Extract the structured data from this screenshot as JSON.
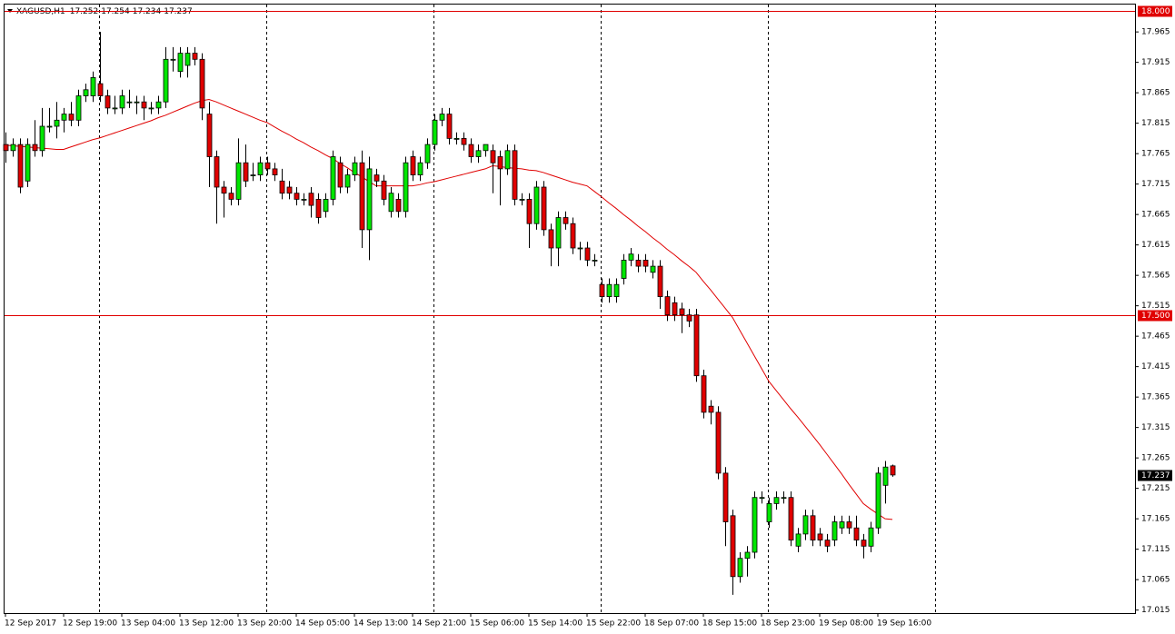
{
  "chart_data": {
    "type": "candlestick",
    "title": "XAGUSD,H1",
    "header_values": [
      17.252,
      17.254,
      17.234,
      17.237
    ],
    "categories": [
      "12 Sep 2017",
      null,
      null,
      null,
      null,
      null,
      null,
      null,
      "12 Sep 19:00",
      null,
      null,
      null,
      null,
      null,
      null,
      null,
      "13 Sep 04:00",
      null,
      null,
      null,
      null,
      null,
      null,
      null,
      "13 Sep 12:00",
      null,
      null,
      null,
      null,
      null,
      null,
      null,
      "13 Sep 20:00",
      null,
      null,
      null,
      null,
      null,
      null,
      null,
      "14 Sep 05:00",
      null,
      null,
      null,
      null,
      null,
      null,
      null,
      "14 Sep 13:00",
      null,
      null,
      null,
      null,
      null,
      null,
      null,
      "14 Sep 21:00",
      null,
      null,
      null,
      null,
      null,
      null,
      null,
      "15 Sep 06:00",
      null,
      null,
      null,
      null,
      null,
      null,
      null,
      "15 Sep 14:00",
      null,
      null,
      null,
      null,
      null,
      null,
      null,
      "15 Sep 22:00",
      null,
      null,
      null,
      null,
      null,
      null,
      null,
      "18 Sep 07:00",
      null,
      null,
      null,
      null,
      null,
      null,
      null,
      "18 Sep 15:00",
      null,
      null,
      null,
      null,
      null,
      null,
      null,
      "18 Sep 23:00",
      null,
      null,
      null,
      null,
      null,
      null,
      null,
      "19 Sep 08:00",
      null,
      null,
      null,
      null,
      null,
      null,
      null,
      "19 Sep 16:00",
      null,
      null
    ],
    "open": [
      17.78,
      17.77,
      17.78,
      17.72,
      17.78,
      17.77,
      17.81,
      17.81,
      17.82,
      17.83,
      17.82,
      17.86,
      17.86,
      17.88,
      17.86,
      17.84,
      17.84,
      17.85,
      17.85,
      17.85,
      17.84,
      17.84,
      17.85,
      17.92,
      17.9,
      17.91,
      17.93,
      17.92,
      17.83,
      17.76,
      17.71,
      17.7,
      17.69,
      17.75,
      17.73,
      17.73,
      17.75,
      17.74,
      17.72,
      17.71,
      17.7,
      17.69,
      17.7,
      17.69,
      17.67,
      17.69,
      17.75,
      17.71,
      17.73,
      17.75,
      17.64,
      17.73,
      17.72,
      17.67,
      17.69,
      17.67,
      17.76,
      17.73,
      17.75,
      17.78,
      17.82,
      17.83,
      17.79,
      17.79,
      17.78,
      17.76,
      17.77,
      17.77,
      17.76,
      17.74,
      17.77,
      17.69,
      17.69,
      17.65,
      17.71,
      17.64,
      17.61,
      17.66,
      17.65,
      17.61,
      17.61,
      17.59,
      17.55,
      17.53,
      17.53,
      17.56,
      17.59,
      17.59,
      17.59,
      17.57,
      17.58,
      17.53,
      17.52,
      17.51,
      17.5,
      17.5,
      17.4,
      17.35,
      17.34,
      17.24,
      17.17,
      17.07,
      17.1,
      17.11,
      17.2,
      17.16,
      17.19,
      17.2,
      17.2,
      17.12,
      17.14,
      17.17,
      17.14,
      17.13,
      17.13,
      17.15,
      17.16,
      17.15,
      17.13,
      17.12,
      17.15,
      17.22,
      17.252
    ],
    "high": [
      17.8,
      17.79,
      17.79,
      17.79,
      17.82,
      17.84,
      17.84,
      17.85,
      17.84,
      17.85,
      17.87,
      17.88,
      17.9,
      17.965,
      17.87,
      17.86,
      17.87,
      17.87,
      17.86,
      17.86,
      17.85,
      17.86,
      17.94,
      17.94,
      17.94,
      17.94,
      17.94,
      17.93,
      17.85,
      17.77,
      17.72,
      17.71,
      17.79,
      17.78,
      17.75,
      17.76,
      17.76,
      17.75,
      17.74,
      17.72,
      17.71,
      17.7,
      17.71,
      17.7,
      17.7,
      17.77,
      17.76,
      17.74,
      17.76,
      17.77,
      17.76,
      17.74,
      17.73,
      17.71,
      17.7,
      17.76,
      17.77,
      17.76,
      17.79,
      17.83,
      17.84,
      17.84,
      17.8,
      17.8,
      17.79,
      17.78,
      17.78,
      17.78,
      17.77,
      17.78,
      17.78,
      17.7,
      17.7,
      17.72,
      17.72,
      17.65,
      17.67,
      17.67,
      17.66,
      17.62,
      17.62,
      17.6,
      17.56,
      17.56,
      17.56,
      17.6,
      17.61,
      17.6,
      17.6,
      17.59,
      17.59,
      17.54,
      17.53,
      17.52,
      17.51,
      17.51,
      17.41,
      17.36,
      17.35,
      17.25,
      17.18,
      17.11,
      17.12,
      17.21,
      17.21,
      17.2,
      17.21,
      17.21,
      17.21,
      17.15,
      17.18,
      17.18,
      17.15,
      17.14,
      17.17,
      17.17,
      17.17,
      17.17,
      17.14,
      17.16,
      17.25,
      17.26,
      17.254
    ],
    "low": [
      17.75,
      17.76,
      17.7,
      17.71,
      17.76,
      17.76,
      17.8,
      17.79,
      17.8,
      17.81,
      17.81,
      17.85,
      17.85,
      17.85,
      17.83,
      17.83,
      17.83,
      17.84,
      17.83,
      17.82,
      17.83,
      17.83,
      17.84,
      17.9,
      17.89,
      17.89,
      17.91,
      17.82,
      17.71,
      17.65,
      17.66,
      17.68,
      17.68,
      17.71,
      17.72,
      17.72,
      17.73,
      17.72,
      17.69,
      17.69,
      17.68,
      17.68,
      17.66,
      17.65,
      17.66,
      17.68,
      17.7,
      17.7,
      17.72,
      17.61,
      17.59,
      17.71,
      17.68,
      17.66,
      17.66,
      17.66,
      17.72,
      17.72,
      17.74,
      17.77,
      17.81,
      17.78,
      17.78,
      17.77,
      17.75,
      17.75,
      17.76,
      17.7,
      17.68,
      17.73,
      17.68,
      17.68,
      17.61,
      17.64,
      17.63,
      17.58,
      17.58,
      17.64,
      17.6,
      17.59,
      17.58,
      17.58,
      17.52,
      17.52,
      17.52,
      17.55,
      17.58,
      17.57,
      17.57,
      17.56,
      17.51,
      17.49,
      17.49,
      17.47,
      17.48,
      17.39,
      17.33,
      17.32,
      17.23,
      17.12,
      17.04,
      17.06,
      17.07,
      17.1,
      17.19,
      17.15,
      17.18,
      17.19,
      17.12,
      17.11,
      17.13,
      17.12,
      17.12,
      17.11,
      17.12,
      17.14,
      17.14,
      17.12,
      17.1,
      17.11,
      17.14,
      17.19,
      17.234
    ],
    "close": [
      17.77,
      17.78,
      17.71,
      17.78,
      17.77,
      17.81,
      17.81,
      17.82,
      17.83,
      17.82,
      17.86,
      17.87,
      17.89,
      17.86,
      17.84,
      17.84,
      17.86,
      17.85,
      17.85,
      17.84,
      17.84,
      17.85,
      17.92,
      17.92,
      17.93,
      17.93,
      17.92,
      17.84,
      17.76,
      17.71,
      17.7,
      17.69,
      17.75,
      17.72,
      17.73,
      17.75,
      17.74,
      17.73,
      17.7,
      17.7,
      17.69,
      17.69,
      17.68,
      17.66,
      17.69,
      17.76,
      17.71,
      17.73,
      17.75,
      17.64,
      17.74,
      17.72,
      17.69,
      17.7,
      17.67,
      17.75,
      17.73,
      17.75,
      17.78,
      17.82,
      17.83,
      17.79,
      17.79,
      17.78,
      17.76,
      17.77,
      17.78,
      17.75,
      17.74,
      17.77,
      17.69,
      17.69,
      17.65,
      17.71,
      17.64,
      17.61,
      17.66,
      17.65,
      17.61,
      17.61,
      17.59,
      17.59,
      17.53,
      17.55,
      17.55,
      17.59,
      17.6,
      17.58,
      17.58,
      17.58,
      17.53,
      17.5,
      17.5,
      17.5,
      17.49,
      17.4,
      17.34,
      17.34,
      17.24,
      17.16,
      17.07,
      17.1,
      17.11,
      17.2,
      17.2,
      17.19,
      17.2,
      17.2,
      17.13,
      17.14,
      17.17,
      17.13,
      17.13,
      17.12,
      17.16,
      17.16,
      17.15,
      17.13,
      17.12,
      17.15,
      17.24,
      17.25,
      17.237
    ],
    "up_color": "#00e600",
    "down_color": "#e00000",
    "series": [
      {
        "color": "#e00000",
        "values": [
          17.779,
          17.778,
          17.777,
          17.776,
          17.775,
          17.774,
          17.773,
          17.772,
          17.772,
          17.776,
          17.78,
          17.784,
          17.788,
          17.791,
          17.795,
          17.799,
          17.803,
          17.807,
          17.811,
          17.815,
          17.819,
          17.824,
          17.828,
          17.833,
          17.838,
          17.843,
          17.848,
          17.852,
          17.854,
          17.85,
          17.845,
          17.84,
          17.835,
          17.83,
          17.825,
          17.82,
          17.816,
          17.809,
          17.802,
          17.796,
          17.789,
          17.783,
          17.776,
          17.77,
          17.763,
          17.757,
          17.749,
          17.742,
          17.734,
          17.727,
          17.719,
          17.712,
          17.712,
          17.712,
          17.712,
          17.712,
          17.712,
          17.714,
          17.717,
          17.719,
          17.722,
          17.725,
          17.728,
          17.731,
          17.734,
          17.737,
          17.74,
          17.745,
          17.744,
          17.742,
          17.741,
          17.74,
          17.738,
          17.737,
          17.734,
          17.73,
          17.726,
          17.722,
          17.718,
          17.715,
          17.712,
          17.703,
          17.694,
          17.684,
          17.675,
          17.665,
          17.656,
          17.646,
          17.637,
          17.627,
          17.618,
          17.608,
          17.599,
          17.589,
          17.58,
          17.57,
          17.555,
          17.541,
          17.526,
          17.511,
          17.496,
          17.475,
          17.454,
          17.433,
          17.412,
          17.391,
          17.376,
          17.361,
          17.346,
          17.332,
          17.317,
          17.302,
          17.287,
          17.271,
          17.255,
          17.239,
          17.222,
          17.206,
          17.19,
          17.181,
          17.173,
          17.165,
          17.164
        ]
      }
    ],
    "ylim": [
      17.01,
      18.01
    ],
    "yticks": [
      17.965,
      17.915,
      17.865,
      17.815,
      17.765,
      17.715,
      17.665,
      17.615,
      17.565,
      17.515,
      17.465,
      17.415,
      17.365,
      17.315,
      17.265,
      17.215,
      17.165,
      17.115,
      17.065,
      17.015
    ],
    "hlines": [
      {
        "value": 18,
        "label": "18.000",
        "color": "#e00000"
      },
      {
        "value": 17.5,
        "label": "17.500",
        "color": "#e00000"
      }
    ],
    "last_price": 17.237
  }
}
